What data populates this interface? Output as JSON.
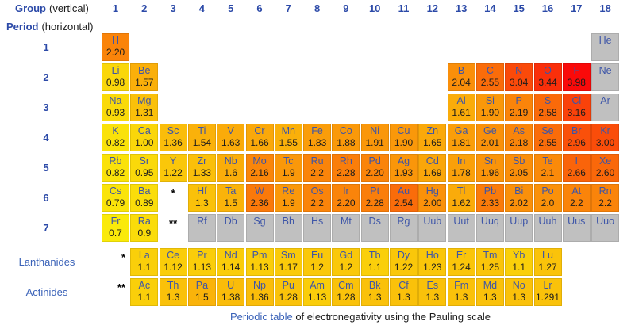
{
  "header": {
    "group_label": "Group",
    "group_note": "(vertical)",
    "period_label": "Period",
    "period_note": "(horizontal)",
    "group_numbers": [
      "1",
      "2",
      "3",
      "4",
      "5",
      "6",
      "7",
      "8",
      "9",
      "10",
      "11",
      "12",
      "13",
      "14",
      "15",
      "16",
      "17",
      "18"
    ],
    "period_numbers": [
      "1",
      "2",
      "3",
      "4",
      "5",
      "6",
      "7"
    ]
  },
  "side_labels": {
    "lanthanides": "Lanthanides",
    "actinides": "Actinides"
  },
  "markers": [
    {
      "row": "6",
      "col": 3,
      "text": "*"
    },
    {
      "row": "7",
      "col": 3,
      "text": "**"
    },
    {
      "row": "lanthanides",
      "col": 1,
      "text": "*"
    },
    {
      "row": "actinides",
      "col": 1,
      "text": "**"
    }
  ],
  "caption": {
    "link_text": "Periodic table",
    "rest_text": " of electronegativity using the Pauling scale"
  },
  "colors": {
    "header_text": "#2c4aa8",
    "element_symbol": "#3d55a8",
    "value_text": "#1c1c1c",
    "inactive_cell": "#c0c0c0",
    "link": "#3a62b8",
    "marker": "#000000"
  },
  "heat_scale": {
    "description": "electronegativity mapped yellow to red",
    "min_value": 0.7,
    "max_value": 3.98,
    "hue_start": 56,
    "hue_end": 0,
    "saturation": 96,
    "lightness": 51
  },
  "elements": [
    {
      "symbol": "H",
      "row": "1",
      "col": 1,
      "en": "2.20"
    },
    {
      "symbol": "He",
      "row": "1",
      "col": 18,
      "en": null
    },
    {
      "symbol": "Li",
      "row": "2",
      "col": 1,
      "en": "0.98"
    },
    {
      "symbol": "Be",
      "row": "2",
      "col": 2,
      "en": "1.57"
    },
    {
      "symbol": "B",
      "row": "2",
      "col": 13,
      "en": "2.04"
    },
    {
      "symbol": "C",
      "row": "2",
      "col": 14,
      "en": "2.55"
    },
    {
      "symbol": "N",
      "row": "2",
      "col": 15,
      "en": "3.04"
    },
    {
      "symbol": "O",
      "row": "2",
      "col": 16,
      "en": "3.44"
    },
    {
      "symbol": "F",
      "row": "2",
      "col": 17,
      "en": "3.98"
    },
    {
      "symbol": "Ne",
      "row": "2",
      "col": 18,
      "en": null
    },
    {
      "symbol": "Na",
      "row": "3",
      "col": 1,
      "en": "0.93"
    },
    {
      "symbol": "Mg",
      "row": "3",
      "col": 2,
      "en": "1.31"
    },
    {
      "symbol": "Al",
      "row": "3",
      "col": 13,
      "en": "1.61"
    },
    {
      "symbol": "Si",
      "row": "3",
      "col": 14,
      "en": "1.90"
    },
    {
      "symbol": "P",
      "row": "3",
      "col": 15,
      "en": "2.19"
    },
    {
      "symbol": "S",
      "row": "3",
      "col": 16,
      "en": "2.58"
    },
    {
      "symbol": "Cl",
      "row": "3",
      "col": 17,
      "en": "3.16"
    },
    {
      "symbol": "Ar",
      "row": "3",
      "col": 18,
      "en": null
    },
    {
      "symbol": "K",
      "row": "4",
      "col": 1,
      "en": "0.82"
    },
    {
      "symbol": "Ca",
      "row": "4",
      "col": 2,
      "en": "1.00"
    },
    {
      "symbol": "Sc",
      "row": "4",
      "col": 3,
      "en": "1.36"
    },
    {
      "symbol": "Ti",
      "row": "4",
      "col": 4,
      "en": "1.54"
    },
    {
      "symbol": "V",
      "row": "4",
      "col": 5,
      "en": "1.63"
    },
    {
      "symbol": "Cr",
      "row": "4",
      "col": 6,
      "en": "1.66"
    },
    {
      "symbol": "Mn",
      "row": "4",
      "col": 7,
      "en": "1.55"
    },
    {
      "symbol": "Fe",
      "row": "4",
      "col": 8,
      "en": "1.83"
    },
    {
      "symbol": "Co",
      "row": "4",
      "col": 9,
      "en": "1.88"
    },
    {
      "symbol": "Ni",
      "row": "4",
      "col": 10,
      "en": "1.91"
    },
    {
      "symbol": "Cu",
      "row": "4",
      "col": 11,
      "en": "1.90"
    },
    {
      "symbol": "Zn",
      "row": "4",
      "col": 12,
      "en": "1.65"
    },
    {
      "symbol": "Ga",
      "row": "4",
      "col": 13,
      "en": "1.81"
    },
    {
      "symbol": "Ge",
      "row": "4",
      "col": 14,
      "en": "2.01"
    },
    {
      "symbol": "As",
      "row": "4",
      "col": 15,
      "en": "2.18"
    },
    {
      "symbol": "Se",
      "row": "4",
      "col": 16,
      "en": "2.55"
    },
    {
      "symbol": "Br",
      "row": "4",
      "col": 17,
      "en": "2.96"
    },
    {
      "symbol": "Kr",
      "row": "4",
      "col": 18,
      "en": "3.00"
    },
    {
      "symbol": "Rb",
      "row": "5",
      "col": 1,
      "en": "0.82"
    },
    {
      "symbol": "Sr",
      "row": "5",
      "col": 2,
      "en": "0.95"
    },
    {
      "symbol": "Y",
      "row": "5",
      "col": 3,
      "en": "1.22"
    },
    {
      "symbol": "Zr",
      "row": "5",
      "col": 4,
      "en": "1.33"
    },
    {
      "symbol": "Nb",
      "row": "5",
      "col": 5,
      "en": "1.6"
    },
    {
      "symbol": "Mo",
      "row": "5",
      "col": 6,
      "en": "2.16"
    },
    {
      "symbol": "Tc",
      "row": "5",
      "col": 7,
      "en": "1.9"
    },
    {
      "symbol": "Ru",
      "row": "5",
      "col": 8,
      "en": "2.2"
    },
    {
      "symbol": "Rh",
      "row": "5",
      "col": 9,
      "en": "2.28"
    },
    {
      "symbol": "Pd",
      "row": "5",
      "col": 10,
      "en": "2.20"
    },
    {
      "symbol": "Ag",
      "row": "5",
      "col": 11,
      "en": "1.93"
    },
    {
      "symbol": "Cd",
      "row": "5",
      "col": 12,
      "en": "1.69"
    },
    {
      "symbol": "In",
      "row": "5",
      "col": 13,
      "en": "1.78"
    },
    {
      "symbol": "Sn",
      "row": "5",
      "col": 14,
      "en": "1.96"
    },
    {
      "symbol": "Sb",
      "row": "5",
      "col": 15,
      "en": "2.05"
    },
    {
      "symbol": "Te",
      "row": "5",
      "col": 16,
      "en": "2.1"
    },
    {
      "symbol": "I",
      "row": "5",
      "col": 17,
      "en": "2.66"
    },
    {
      "symbol": "Xe",
      "row": "5",
      "col": 18,
      "en": "2.60"
    },
    {
      "symbol": "Cs",
      "row": "6",
      "col": 1,
      "en": "0.79"
    },
    {
      "symbol": "Ba",
      "row": "6",
      "col": 2,
      "en": "0.89"
    },
    {
      "symbol": "Hf",
      "row": "6",
      "col": 4,
      "en": "1.3"
    },
    {
      "symbol": "Ta",
      "row": "6",
      "col": 5,
      "en": "1.5"
    },
    {
      "symbol": "W",
      "row": "6",
      "col": 6,
      "en": "2.36"
    },
    {
      "symbol": "Re",
      "row": "6",
      "col": 7,
      "en": "1.9"
    },
    {
      "symbol": "Os",
      "row": "6",
      "col": 8,
      "en": "2.2"
    },
    {
      "symbol": "Ir",
      "row": "6",
      "col": 9,
      "en": "2.20"
    },
    {
      "symbol": "Pt",
      "row": "6",
      "col": 10,
      "en": "2.28"
    },
    {
      "symbol": "Au",
      "row": "6",
      "col": 11,
      "en": "2.54"
    },
    {
      "symbol": "Hg",
      "row": "6",
      "col": 12,
      "en": "2.00"
    },
    {
      "symbol": "Tl",
      "row": "6",
      "col": 13,
      "en": "1.62"
    },
    {
      "symbol": "Pb",
      "row": "6",
      "col": 14,
      "en": "2.33"
    },
    {
      "symbol": "Bi",
      "row": "6",
      "col": 15,
      "en": "2.02"
    },
    {
      "symbol": "Po",
      "row": "6",
      "col": 16,
      "en": "2.0"
    },
    {
      "symbol": "At",
      "row": "6",
      "col": 17,
      "en": "2.2"
    },
    {
      "symbol": "Rn",
      "row": "6",
      "col": 18,
      "en": "2.2"
    },
    {
      "symbol": "Fr",
      "row": "7",
      "col": 1,
      "en": "0.7"
    },
    {
      "symbol": "Ra",
      "row": "7",
      "col": 2,
      "en": "0.9"
    },
    {
      "symbol": "Rf",
      "row": "7",
      "col": 4,
      "en": null
    },
    {
      "symbol": "Db",
      "row": "7",
      "col": 5,
      "en": null
    },
    {
      "symbol": "Sg",
      "row": "7",
      "col": 6,
      "en": null
    },
    {
      "symbol": "Bh",
      "row": "7",
      "col": 7,
      "en": null
    },
    {
      "symbol": "Hs",
      "row": "7",
      "col": 8,
      "en": null
    },
    {
      "symbol": "Mt",
      "row": "7",
      "col": 9,
      "en": null
    },
    {
      "symbol": "Ds",
      "row": "7",
      "col": 10,
      "en": null
    },
    {
      "symbol": "Rg",
      "row": "7",
      "col": 11,
      "en": null
    },
    {
      "symbol": "Uub",
      "row": "7",
      "col": 12,
      "en": null
    },
    {
      "symbol": "Uut",
      "row": "7",
      "col": 13,
      "en": null
    },
    {
      "symbol": "Uuq",
      "row": "7",
      "col": 14,
      "en": null
    },
    {
      "symbol": "Uup",
      "row": "7",
      "col": 15,
      "en": null
    },
    {
      "symbol": "Uuh",
      "row": "7",
      "col": 16,
      "en": null
    },
    {
      "symbol": "Uus",
      "row": "7",
      "col": 17,
      "en": null
    },
    {
      "symbol": "Uuo",
      "row": "7",
      "col": 18,
      "en": null
    },
    {
      "symbol": "La",
      "row": "lanthanides",
      "col": 2,
      "en": "1.1"
    },
    {
      "symbol": "Ce",
      "row": "lanthanides",
      "col": 3,
      "en": "1.12"
    },
    {
      "symbol": "Pr",
      "row": "lanthanides",
      "col": 4,
      "en": "1.13"
    },
    {
      "symbol": "Nd",
      "row": "lanthanides",
      "col": 5,
      "en": "1.14"
    },
    {
      "symbol": "Pm",
      "row": "lanthanides",
      "col": 6,
      "en": "1.13"
    },
    {
      "symbol": "Sm",
      "row": "lanthanides",
      "col": 7,
      "en": "1.17"
    },
    {
      "symbol": "Eu",
      "row": "lanthanides",
      "col": 8,
      "en": "1.2"
    },
    {
      "symbol": "Gd",
      "row": "lanthanides",
      "col": 9,
      "en": "1.2"
    },
    {
      "symbol": "Tb",
      "row": "lanthanides",
      "col": 10,
      "en": "1.1"
    },
    {
      "symbol": "Dy",
      "row": "lanthanides",
      "col": 11,
      "en": "1.22"
    },
    {
      "symbol": "Ho",
      "row": "lanthanides",
      "col": 12,
      "en": "1.23"
    },
    {
      "symbol": "Er",
      "row": "lanthanides",
      "col": 13,
      "en": "1.24"
    },
    {
      "symbol": "Tm",
      "row": "lanthanides",
      "col": 14,
      "en": "1.25"
    },
    {
      "symbol": "Yb",
      "row": "lanthanides",
      "col": 15,
      "en": "1.1"
    },
    {
      "symbol": "Lu",
      "row": "lanthanides",
      "col": 16,
      "en": "1.27"
    },
    {
      "symbol": "Ac",
      "row": "actinides",
      "col": 2,
      "en": "1.1"
    },
    {
      "symbol": "Th",
      "row": "actinides",
      "col": 3,
      "en": "1.3"
    },
    {
      "symbol": "Pa",
      "row": "actinides",
      "col": 4,
      "en": "1.5"
    },
    {
      "symbol": "U",
      "row": "actinides",
      "col": 5,
      "en": "1.38"
    },
    {
      "symbol": "Np",
      "row": "actinides",
      "col": 6,
      "en": "1.36"
    },
    {
      "symbol": "Pu",
      "row": "actinides",
      "col": 7,
      "en": "1.28"
    },
    {
      "symbol": "Am",
      "row": "actinides",
      "col": 8,
      "en": "1.13"
    },
    {
      "symbol": "Cm",
      "row": "actinides",
      "col": 9,
      "en": "1.28"
    },
    {
      "symbol": "Bk",
      "row": "actinides",
      "col": 10,
      "en": "1.3"
    },
    {
      "symbol": "Cf",
      "row": "actinides",
      "col": 11,
      "en": "1.3"
    },
    {
      "symbol": "Es",
      "row": "actinides",
      "col": 12,
      "en": "1.3"
    },
    {
      "symbol": "Fm",
      "row": "actinides",
      "col": 13,
      "en": "1.3"
    },
    {
      "symbol": "Md",
      "row": "actinides",
      "col": 14,
      "en": "1.3"
    },
    {
      "symbol": "No",
      "row": "actinides",
      "col": 15,
      "en": "1.3"
    },
    {
      "symbol": "Lr",
      "row": "actinides",
      "col": 16,
      "en": "1.291"
    }
  ]
}
